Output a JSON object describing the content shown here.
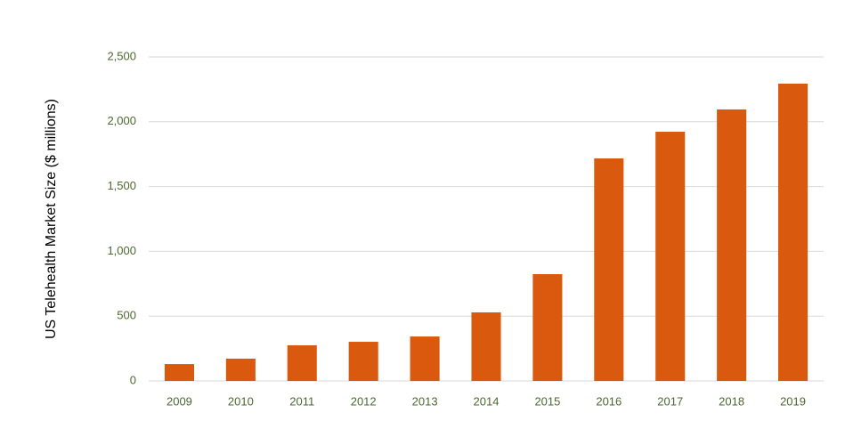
{
  "chart_data": {
    "type": "bar",
    "y_label": "US Telehealth Market Size ($ millions)",
    "categories": [
      "2009",
      "2010",
      "2011",
      "2012",
      "2013",
      "2014",
      "2015",
      "2016",
      "2017",
      "2018",
      "2019"
    ],
    "values": [
      130,
      172,
      275,
      302,
      343,
      529,
      824,
      1717,
      1923,
      2095,
      2294
    ],
    "color": "#d95a0e",
    "ylim": [
      0,
      2500
    ],
    "yticks": [
      0,
      500,
      {
        "value": 1000,
        "label": "1,000"
      },
      {
        "value": 1500,
        "label": "1,500"
      },
      {
        "value": 2000,
        "label": "2,000"
      },
      {
        "value": 2500,
        "label": "2,500"
      }
    ],
    "grid": true
  }
}
